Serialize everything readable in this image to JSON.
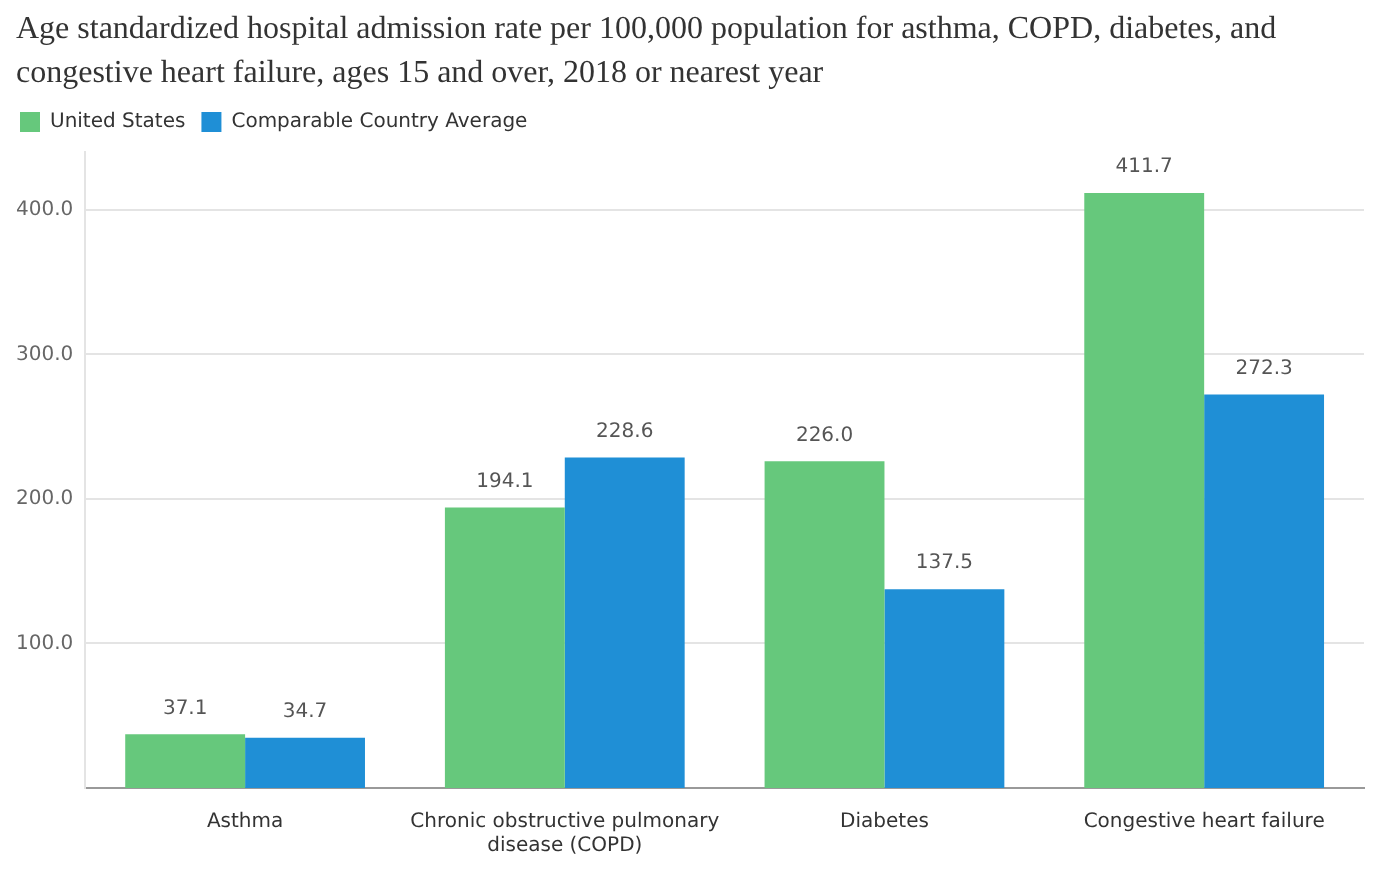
{
  "chart_data": {
    "type": "bar",
    "title": "Age standardized hospital admission rate per 100,000 population for asthma, COPD, diabetes, and congestive heart failure, ages 15 and over, 2018 or nearest year",
    "categories": [
      "Asthma",
      "Chronic obstructive pulmonary disease (COPD)",
      "Diabetes",
      "Congestive heart failure"
    ],
    "series": [
      {
        "name": "United States",
        "color": "#66c87c",
        "values": [
          37.1,
          194.1,
          226.0,
          411.7
        ],
        "value_labels": [
          "37.1",
          "194.1",
          "226.0",
          "411.7"
        ]
      },
      {
        "name": "Comparable Country Average",
        "color": "#1f8fd6",
        "values": [
          34.7,
          228.6,
          137.5,
          272.3
        ],
        "value_labels": [
          "34.7",
          "228.6",
          "137.5",
          "272.3"
        ]
      }
    ],
    "ylim": [
      0,
      440
    ],
    "yticks": [
      {
        "value": 100,
        "label": "100.0"
      },
      {
        "value": 200,
        "label": "200.0"
      },
      {
        "value": 300,
        "label": "300.0"
      },
      {
        "value": 400,
        "label": "400.0"
      }
    ],
    "grid": "y",
    "legend": "top left"
  }
}
